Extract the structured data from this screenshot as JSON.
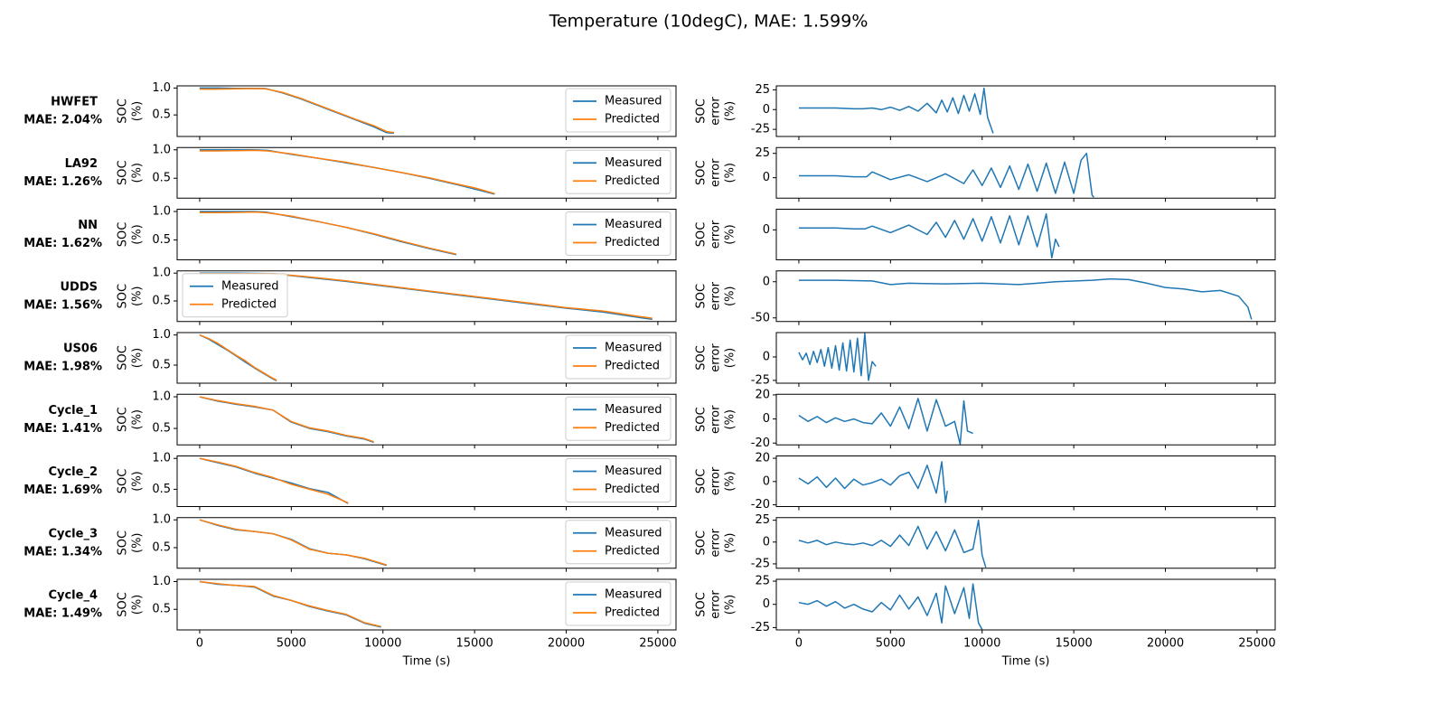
{
  "title": "Temperature (10degC), MAE: 1.599%",
  "chart_data": [
    {
      "type": "line",
      "title": "HWFET",
      "subtitle": "MAE: 2.04%",
      "ylabel": [
        "SOC",
        "(%)"
      ],
      "xlim": [
        -1230,
        25990
      ],
      "ylim": [
        0.1,
        1.04
      ],
      "yticks": [
        0.5,
        {
          "value": 1,
          "label": "1.0"
        }
      ],
      "legend": "lower right",
      "x": [
        0,
        1000,
        2000,
        3000,
        3600,
        4500,
        5500,
        6500,
        7500,
        8500,
        9500,
        10200,
        10600
      ],
      "series": [
        {
          "name": "Measured",
          "color": "#1f77b4",
          "values": [
            1.0,
            1.0,
            0.995,
            0.995,
            0.99,
            0.91,
            0.8,
            0.67,
            0.54,
            0.41,
            0.28,
            0.17,
            0.16
          ]
        },
        {
          "name": "Predicted",
          "color": "#ff7f0e",
          "values": [
            0.98,
            0.98,
            0.985,
            0.99,
            0.985,
            0.92,
            0.81,
            0.68,
            0.55,
            0.42,
            0.3,
            0.19,
            0.17
          ]
        }
      ]
    },
    {
      "type": "line",
      "ylabel": [
        "SOC",
        "error",
        "(%)"
      ],
      "xlim": [
        -1230,
        25990
      ],
      "ylim": [
        -34,
        30
      ],
      "yticks": [
        -25,
        0,
        25
      ],
      "color": "#1f77b4",
      "x": [
        0,
        1000,
        2000,
        3000,
        3500,
        4000,
        4500,
        5000,
        5500,
        6000,
        6500,
        7000,
        7500,
        7800,
        8100,
        8400,
        8700,
        9000,
        9300,
        9600,
        9900,
        10100,
        10300,
        10600
      ],
      "values": [
        2,
        2,
        2,
        1,
        1,
        2,
        0,
        3,
        -1,
        4,
        -2,
        8,
        -4,
        12,
        -3,
        15,
        -5,
        18,
        -2,
        20,
        -6,
        27,
        -10,
        -30
      ]
    },
    {
      "type": "line",
      "title": "LA92",
      "subtitle": "MAE: 1.26%",
      "ylabel": [
        "SOC",
        "(%)"
      ],
      "xlim": [
        -1230,
        25990
      ],
      "ylim": [
        0.15,
        1.04
      ],
      "yticks": [
        0.5,
        {
          "value": 1,
          "label": "1.0"
        }
      ],
      "legend": "lower right",
      "x": [
        0,
        1000,
        2000,
        3000,
        3700,
        5000,
        6500,
        8000,
        9500,
        11000,
        12500,
        14000,
        15000,
        16100
      ],
      "series": [
        {
          "name": "Measured",
          "color": "#1f77b4",
          "values": [
            1.0,
            1.0,
            1.0,
            1.0,
            0.99,
            0.92,
            0.85,
            0.77,
            0.69,
            0.6,
            0.5,
            0.39,
            0.31,
            0.22
          ]
        },
        {
          "name": "Predicted",
          "color": "#ff7f0e",
          "values": [
            0.98,
            0.98,
            0.985,
            0.99,
            0.98,
            0.93,
            0.85,
            0.78,
            0.69,
            0.6,
            0.51,
            0.4,
            0.33,
            0.23
          ]
        }
      ]
    },
    {
      "type": "line",
      "ylabel": [
        "SOC",
        "error",
        "(%)"
      ],
      "xlim": [
        -1230,
        25990
      ],
      "ylim": [
        -21,
        31
      ],
      "yticks": [
        0,
        25
      ],
      "color": "#1f77b4",
      "x": [
        0,
        1000,
        2000,
        3000,
        3700,
        4000,
        5000,
        6000,
        7000,
        8000,
        9000,
        9500,
        10000,
        10500,
        11000,
        11500,
        12000,
        12500,
        13000,
        13500,
        14000,
        14500,
        15000,
        15400,
        15700,
        16000,
        16100
      ],
      "values": [
        2,
        2,
        2,
        1,
        1,
        6,
        -2,
        3,
        -4,
        4,
        -6,
        8,
        -8,
        10,
        -10,
        12,
        -12,
        14,
        -14,
        15,
        -16,
        16,
        -16,
        18,
        25,
        -18,
        -20
      ]
    },
    {
      "type": "line",
      "title": "NN",
      "subtitle": "MAE: 1.62%",
      "ylabel": [
        "SOC",
        "(%)"
      ],
      "xlim": [
        -1230,
        25990
      ],
      "ylim": [
        0.15,
        1.04
      ],
      "yticks": [
        0.5,
        {
          "value": 1,
          "label": "1.0"
        }
      ],
      "legend": "lower right",
      "x": [
        0,
        1000,
        2000,
        3000,
        3600,
        5000,
        6500,
        8000,
        9500,
        11000,
        12500,
        14000
      ],
      "series": [
        {
          "name": "Measured",
          "color": "#1f77b4",
          "values": [
            1.0,
            1.0,
            1.0,
            1.0,
            0.99,
            0.91,
            0.82,
            0.72,
            0.6,
            0.47,
            0.35,
            0.24
          ]
        },
        {
          "name": "Predicted",
          "color": "#ff7f0e",
          "values": [
            0.98,
            0.98,
            0.985,
            0.99,
            0.98,
            0.92,
            0.82,
            0.72,
            0.61,
            0.48,
            0.36,
            0.25
          ]
        }
      ]
    },
    {
      "type": "line",
      "ylabel": [
        "SOC",
        "error",
        "(%)"
      ],
      "xlim": [
        -1230,
        25990
      ],
      "ylim": [
        -32,
        22
      ],
      "yticks": [
        0
      ],
      "color": "#1f77b4",
      "x": [
        0,
        1000,
        2000,
        3000,
        3600,
        4000,
        5000,
        6000,
        7000,
        7500,
        8000,
        8500,
        9000,
        9500,
        10000,
        10500,
        11000,
        11500,
        12000,
        12500,
        13000,
        13500,
        13800,
        14000,
        14200
      ],
      "values": [
        2,
        2,
        2,
        1,
        1,
        4,
        -3,
        5,
        -5,
        8,
        -8,
        10,
        -10,
        12,
        -12,
        14,
        -14,
        15,
        -16,
        15,
        -18,
        17,
        -30,
        -10,
        -18
      ]
    },
    {
      "type": "line",
      "title": "UDDS",
      "subtitle": "MAE: 1.56%",
      "ylabel": [
        "SOC",
        "(%)"
      ],
      "xlim": [
        -1230,
        25990
      ],
      "ylim": [
        0.13,
        1.04
      ],
      "yticks": [
        0.5,
        {
          "value": 1,
          "label": "1.0"
        }
      ],
      "legend": "lower left",
      "x": [
        0,
        2000,
        4000,
        6000,
        8000,
        10000,
        12000,
        14000,
        16000,
        18000,
        20000,
        22000,
        24000,
        24700
      ],
      "series": [
        {
          "name": "Measured",
          "color": "#1f77b4",
          "values": [
            1.0,
            1.0,
            0.99,
            0.92,
            0.85,
            0.77,
            0.69,
            0.61,
            0.53,
            0.45,
            0.37,
            0.3,
            0.2,
            0.17
          ]
        },
        {
          "name": "Predicted",
          "color": "#ff7f0e",
          "values": [
            0.99,
            0.99,
            0.99,
            0.93,
            0.86,
            0.78,
            0.7,
            0.62,
            0.54,
            0.46,
            0.38,
            0.32,
            0.22,
            0.19
          ]
        }
      ]
    },
    {
      "type": "line",
      "ylabel": [
        "SOC",
        "error",
        "(%)"
      ],
      "xlim": [
        -1230,
        25990
      ],
      "ylim": [
        -55,
        15
      ],
      "yticks": [
        -50,
        0
      ],
      "color": "#1f77b4",
      "x": [
        0,
        2000,
        4000,
        5000,
        6000,
        8000,
        10000,
        12000,
        14000,
        16000,
        17000,
        18000,
        19000,
        20000,
        21000,
        22000,
        23000,
        24000,
        24500,
        24700
      ],
      "values": [
        2,
        2,
        1,
        -4,
        -2,
        -3,
        -2,
        -4,
        0,
        2,
        4,
        3,
        -2,
        -8,
        -10,
        -14,
        -12,
        -20,
        -35,
        -52
      ]
    },
    {
      "type": "line",
      "title": "US06",
      "subtitle": "MAE: 1.98%",
      "ylabel": [
        "SOC",
        "(%)"
      ],
      "xlim": [
        -1230,
        25990
      ],
      "ylim": [
        0.2,
        1.04
      ],
      "yticks": [
        0.5,
        {
          "value": 1,
          "label": "1.0"
        }
      ],
      "legend": "lower right",
      "x": [
        0,
        500,
        1000,
        1500,
        2000,
        2500,
        3000,
        3500,
        4000,
        4200
      ],
      "series": [
        {
          "name": "Measured",
          "color": "#1f77b4",
          "values": [
            1.0,
            0.93,
            0.84,
            0.75,
            0.65,
            0.55,
            0.45,
            0.36,
            0.27,
            0.24
          ]
        },
        {
          "name": "Predicted",
          "color": "#ff7f0e",
          "values": [
            1.0,
            0.94,
            0.86,
            0.76,
            0.66,
            0.57,
            0.46,
            0.37,
            0.28,
            0.25
          ]
        }
      ]
    },
    {
      "type": "line",
      "ylabel": [
        "SOC",
        "error",
        "(%)"
      ],
      "xlim": [
        -1230,
        25990
      ],
      "ylim": [
        -28,
        26
      ],
      "yticks": [
        -25,
        0
      ],
      "color": "#1f77b4",
      "x": [
        0,
        200,
        400,
        600,
        800,
        1000,
        1200,
        1400,
        1600,
        1800,
        2000,
        2200,
        2400,
        2600,
        2800,
        3000,
        3200,
        3400,
        3600,
        3800,
        4000,
        4200
      ],
      "values": [
        5,
        -3,
        4,
        -8,
        6,
        -6,
        8,
        -10,
        10,
        -12,
        12,
        -14,
        15,
        -15,
        18,
        -16,
        20,
        -20,
        25,
        -25,
        -5,
        -10
      ]
    },
    {
      "type": "line",
      "title": "Cycle_1",
      "subtitle": "MAE: 1.41%",
      "ylabel": [
        "SOC",
        "(%)"
      ],
      "xlim": [
        -1230,
        25990
      ],
      "ylim": [
        0.24,
        1.04
      ],
      "yticks": [
        0.5,
        {
          "value": 1,
          "label": "1.0"
        }
      ],
      "legend": "lower right",
      "x": [
        0,
        1000,
        2000,
        3000,
        4000,
        5000,
        6000,
        7000,
        8000,
        9000,
        9500
      ],
      "series": [
        {
          "name": "Measured",
          "color": "#1f77b4",
          "values": [
            1.0,
            0.93,
            0.88,
            0.84,
            0.79,
            0.6,
            0.5,
            0.45,
            0.38,
            0.33,
            0.28
          ]
        },
        {
          "name": "Predicted",
          "color": "#ff7f0e",
          "values": [
            1.0,
            0.94,
            0.89,
            0.85,
            0.79,
            0.61,
            0.51,
            0.46,
            0.39,
            0.34,
            0.29
          ]
        }
      ]
    },
    {
      "type": "line",
      "ylabel": [
        "SOC",
        "error",
        "(%)"
      ],
      "xlim": [
        -1230,
        25990
      ],
      "ylim": [
        -21.5,
        20.5
      ],
      "yticks": [
        -20,
        0,
        20
      ],
      "color": "#1f77b4",
      "x": [
        0,
        500,
        1000,
        1500,
        2000,
        2500,
        3000,
        3500,
        4000,
        4500,
        5000,
        5500,
        6000,
        6500,
        7000,
        7500,
        8000,
        8500,
        8800,
        9000,
        9200,
        9500
      ],
      "values": [
        3,
        -2,
        2,
        -3,
        1,
        -2,
        0,
        -3,
        -4,
        5,
        -6,
        10,
        -8,
        17,
        -10,
        16,
        -6,
        -2,
        -21,
        15,
        -10,
        -12
      ]
    },
    {
      "type": "line",
      "title": "Cycle_2",
      "subtitle": "MAE: 1.69%",
      "ylabel": [
        "SOC",
        "(%)"
      ],
      "xlim": [
        -1230,
        25990
      ],
      "ylim": [
        0.22,
        1.04
      ],
      "yticks": [
        0.5,
        {
          "value": 1,
          "label": "1.0"
        }
      ],
      "legend": "lower right",
      "x": [
        0,
        1000,
        2000,
        3000,
        4000,
        5000,
        6000,
        7000,
        8100
      ],
      "series": [
        {
          "name": "Measured",
          "color": "#1f77b4",
          "values": [
            1.0,
            0.93,
            0.86,
            0.76,
            0.68,
            0.6,
            0.51,
            0.45,
            0.27
          ]
        },
        {
          "name": "Predicted",
          "color": "#ff7f0e",
          "values": [
            1.0,
            0.94,
            0.87,
            0.77,
            0.69,
            0.58,
            0.5,
            0.42,
            0.28
          ]
        }
      ]
    },
    {
      "type": "line",
      "ylabel": [
        "SOC",
        "error",
        "(%)"
      ],
      "xlim": [
        -1230,
        25990
      ],
      "ylim": [
        -21.5,
        22
      ],
      "yticks": [
        -20,
        0,
        20
      ],
      "color": "#1f77b4",
      "x": [
        0,
        500,
        1000,
        1500,
        2000,
        2500,
        3000,
        3500,
        4000,
        4500,
        5000,
        5500,
        6000,
        6500,
        7000,
        7500,
        7800,
        8000,
        8100
      ],
      "values": [
        3,
        -2,
        4,
        -5,
        3,
        -6,
        2,
        -3,
        -1,
        2,
        -3,
        5,
        8,
        -6,
        14,
        -10,
        17,
        -18,
        -8
      ]
    },
    {
      "type": "line",
      "title": "Cycle_3",
      "subtitle": "MAE: 1.34%",
      "ylabel": [
        "SOC",
        "(%)"
      ],
      "xlim": [
        -1230,
        25990
      ],
      "ylim": [
        0.13,
        1.04
      ],
      "yticks": [
        0.5,
        {
          "value": 1,
          "label": "1.0"
        }
      ],
      "legend": "lower right",
      "x": [
        0,
        1000,
        2000,
        3000,
        4000,
        5000,
        6000,
        7000,
        8000,
        9000,
        10200
      ],
      "series": [
        {
          "name": "Measured",
          "color": "#1f77b4",
          "values": [
            1.0,
            0.9,
            0.82,
            0.79,
            0.75,
            0.65,
            0.48,
            0.4,
            0.37,
            0.3,
            0.18
          ]
        },
        {
          "name": "Predicted",
          "color": "#ff7f0e",
          "values": [
            1.0,
            0.91,
            0.83,
            0.79,
            0.75,
            0.64,
            0.47,
            0.4,
            0.37,
            0.31,
            0.19
          ]
        }
      ]
    },
    {
      "type": "line",
      "ylabel": [
        "SOC",
        "error",
        "(%)"
      ],
      "xlim": [
        -1230,
        25990
      ],
      "ylim": [
        -30,
        28
      ],
      "yticks": [
        -25,
        0,
        25
      ],
      "color": "#1f77b4",
      "x": [
        0,
        500,
        1000,
        1500,
        2000,
        2500,
        3000,
        3500,
        4000,
        4500,
        5000,
        5500,
        6000,
        6500,
        7000,
        7500,
        8000,
        8500,
        9000,
        9500,
        9800,
        10000,
        10200
      ],
      "values": [
        2,
        -1,
        2,
        -3,
        0,
        -2,
        -3,
        -1,
        -4,
        2,
        -5,
        8,
        -4,
        18,
        -8,
        12,
        -10,
        14,
        -12,
        -8,
        25,
        -15,
        -29
      ]
    },
    {
      "type": "line",
      "title": "Cycle_4",
      "subtitle": "MAE: 1.49%",
      "ylabel": [
        "SOC",
        "(%)"
      ],
      "xlim": [
        -1230,
        25990
      ],
      "ylim": [
        0.13,
        1.04
      ],
      "yticks": [
        0.5,
        {
          "value": 1,
          "label": "1.0"
        }
      ],
      "legend": "lower right",
      "xlabel": "Time (s)",
      "xticks": [
        0,
        5000,
        10000,
        15000,
        20000,
        25000
      ],
      "x": [
        0,
        1000,
        2000,
        3000,
        4000,
        5000,
        6000,
        7000,
        8000,
        9000,
        9900
      ],
      "series": [
        {
          "name": "Measured",
          "color": "#1f77b4",
          "values": [
            1.0,
            0.95,
            0.93,
            0.9,
            0.74,
            0.66,
            0.55,
            0.47,
            0.4,
            0.25,
            0.18
          ]
        },
        {
          "name": "Predicted",
          "color": "#ff7f0e",
          "values": [
            1.0,
            0.96,
            0.93,
            0.91,
            0.75,
            0.66,
            0.56,
            0.48,
            0.41,
            0.26,
            0.19
          ]
        }
      ]
    },
    {
      "type": "line",
      "ylabel": [
        "SOC",
        "error",
        "(%)"
      ],
      "xlim": [
        -1230,
        25990
      ],
      "ylim": [
        -27.5,
        27
      ],
      "yticks": [
        -25,
        0,
        25
      ],
      "color": "#1f77b4",
      "xlabel": "Time (s)",
      "xticks": [
        0,
        5000,
        10000,
        15000,
        20000,
        25000
      ],
      "x": [
        0,
        500,
        1000,
        1500,
        2000,
        2500,
        3000,
        3500,
        4000,
        4500,
        5000,
        5500,
        6000,
        6500,
        7000,
        7500,
        7800,
        8000,
        8500,
        9000,
        9300,
        9500,
        9800,
        10000
      ],
      "values": [
        2,
        0,
        4,
        -2,
        3,
        -4,
        0,
        -5,
        -8,
        2,
        -6,
        10,
        -5,
        8,
        -12,
        12,
        -20,
        20,
        -10,
        18,
        -15,
        22,
        -20,
        -27
      ]
    }
  ]
}
